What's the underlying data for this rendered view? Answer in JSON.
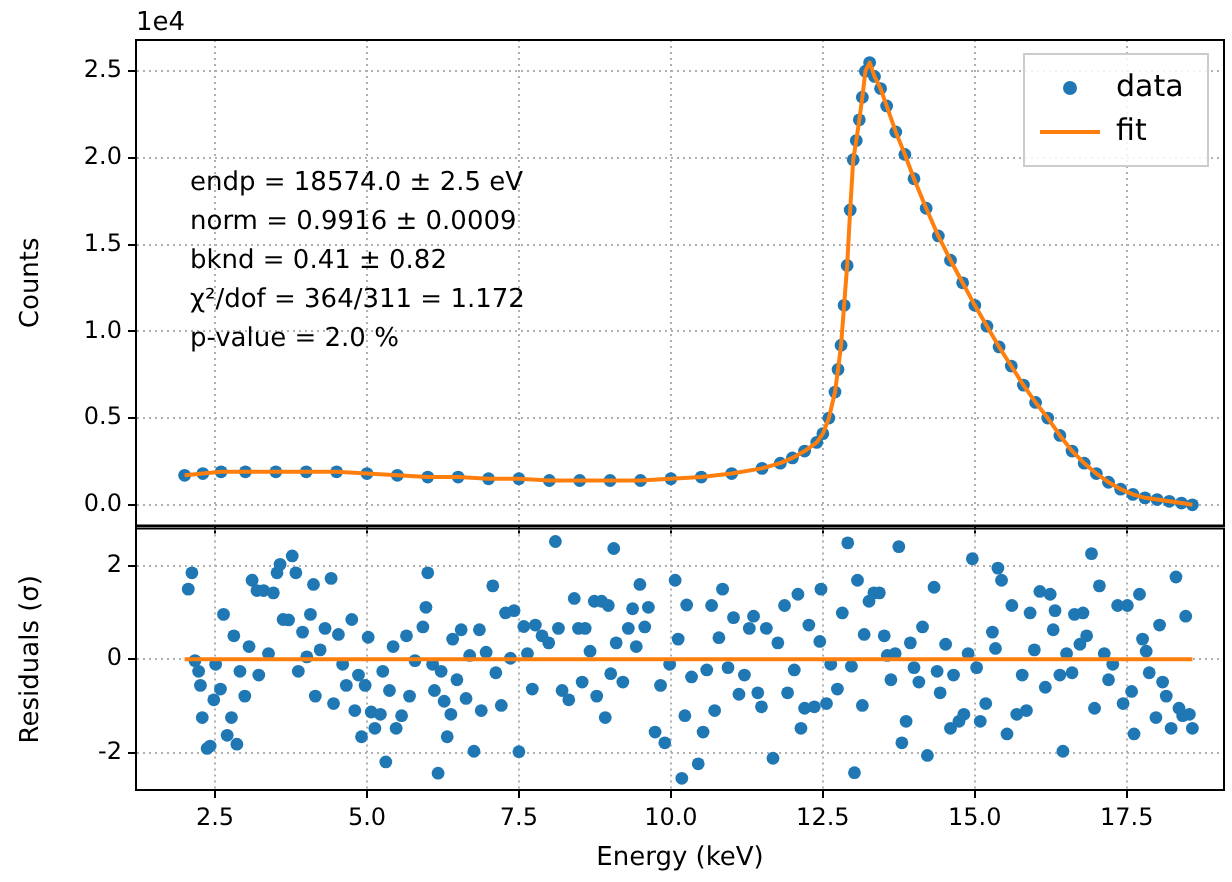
{
  "chart_data": [
    {
      "type": "scatter",
      "ylabel": "Counts",
      "annotations": [
        "1e4",
        "endp = 18574.0 ± 2.5 eV",
        "norm = 0.9916 ± 0.0009",
        "bknd = 0.41 ± 0.82",
        "χ²/dof = 364/311 = 1.172",
        "p-value = 2.0 %"
      ],
      "xlim": [
        1.2,
        19.1
      ],
      "xticks": [
        2.5,
        5,
        7.5,
        10,
        12.5,
        15,
        17.5
      ],
      "ylim": [
        -0.12,
        2.68
      ],
      "yticks": [
        {
          "value": 0,
          "label": "0.0"
        },
        {
          "value": 0.5,
          "label": "0.5"
        },
        {
          "value": 1,
          "label": "1.0"
        },
        {
          "value": 1.5,
          "label": "1.5"
        },
        {
          "value": 2,
          "label": "2.0"
        },
        {
          "value": 2.5,
          "label": "2.5"
        }
      ],
      "tick_labels": "y",
      "grid": true,
      "legend": "top right",
      "series": [
        {
          "name": "data",
          "marker": "circle",
          "color": "#1f77b4",
          "x": [
            2.0,
            2.3,
            2.6,
            3.0,
            3.5,
            4.0,
            4.5,
            5.0,
            5.5,
            6.0,
            6.5,
            7.0,
            7.5,
            8.0,
            8.5,
            9.0,
            9.5,
            10.0,
            10.5,
            11.0,
            11.5,
            11.8,
            12.0,
            12.2,
            12.4,
            12.5,
            12.6,
            12.7,
            12.75,
            12.8,
            12.85,
            12.9,
            12.95,
            13.0,
            13.05,
            13.1,
            13.15,
            13.2,
            13.27,
            13.35,
            13.45,
            13.55,
            13.7,
            13.85,
            14.0,
            14.2,
            14.4,
            14.6,
            14.8,
            15.0,
            15.2,
            15.4,
            15.6,
            15.8,
            16.0,
            16.2,
            16.4,
            16.6,
            16.8,
            17.0,
            17.2,
            17.4,
            17.6,
            17.8,
            18.0,
            18.2,
            18.4,
            18.58
          ],
          "values": [
            0.17,
            0.18,
            0.19,
            0.19,
            0.19,
            0.19,
            0.19,
            0.18,
            0.17,
            0.16,
            0.16,
            0.15,
            0.15,
            0.14,
            0.14,
            0.14,
            0.14,
            0.15,
            0.16,
            0.18,
            0.21,
            0.24,
            0.27,
            0.31,
            0.36,
            0.41,
            0.5,
            0.65,
            0.78,
            0.92,
            1.15,
            1.38,
            1.7,
            1.99,
            2.1,
            2.22,
            2.35,
            2.5,
            2.55,
            2.47,
            2.4,
            2.3,
            2.15,
            2.02,
            1.88,
            1.71,
            1.55,
            1.41,
            1.28,
            1.15,
            1.03,
            0.91,
            0.8,
            0.69,
            0.59,
            0.5,
            0.4,
            0.31,
            0.24,
            0.18,
            0.13,
            0.09,
            0.06,
            0.04,
            0.03,
            0.02,
            0.01,
            0.0
          ]
        },
        {
          "name": "fit",
          "type": "line",
          "marker": "none",
          "color": "#ff7f0e",
          "x": [
            2.0,
            2.3,
            2.6,
            3.0,
            3.5,
            4.0,
            4.5,
            5.0,
            5.5,
            6.0,
            6.5,
            7.0,
            7.5,
            8.0,
            8.5,
            9.0,
            9.5,
            10.0,
            10.5,
            11.0,
            11.5,
            11.8,
            12.0,
            12.2,
            12.4,
            12.5,
            12.6,
            12.7,
            12.75,
            12.8,
            12.85,
            12.9,
            12.95,
            13.0,
            13.05,
            13.1,
            13.15,
            13.2,
            13.27,
            13.35,
            13.45,
            13.55,
            13.7,
            13.85,
            14.0,
            14.2,
            14.4,
            14.6,
            14.8,
            15.0,
            15.2,
            15.4,
            15.6,
            15.8,
            16.0,
            16.2,
            16.4,
            16.6,
            16.8,
            17.0,
            17.2,
            17.4,
            17.6,
            17.8,
            18.0,
            18.2,
            18.4,
            18.58
          ],
          "values": [
            0.17,
            0.18,
            0.19,
            0.19,
            0.19,
            0.19,
            0.19,
            0.18,
            0.17,
            0.16,
            0.16,
            0.15,
            0.15,
            0.14,
            0.14,
            0.14,
            0.14,
            0.15,
            0.16,
            0.18,
            0.21,
            0.24,
            0.27,
            0.31,
            0.36,
            0.41,
            0.5,
            0.65,
            0.78,
            0.92,
            1.15,
            1.38,
            1.7,
            1.99,
            2.1,
            2.22,
            2.35,
            2.5,
            2.55,
            2.47,
            2.4,
            2.3,
            2.15,
            2.02,
            1.88,
            1.71,
            1.55,
            1.41,
            1.28,
            1.15,
            1.03,
            0.91,
            0.8,
            0.69,
            0.59,
            0.5,
            0.4,
            0.31,
            0.24,
            0.18,
            0.13,
            0.09,
            0.06,
            0.04,
            0.03,
            0.02,
            0.01,
            0.0
          ]
        }
      ]
    },
    {
      "type": "scatter",
      "xlabel": "Energy (keV)",
      "ylabel": "Residuals (σ)",
      "xlim": [
        1.2,
        19.1
      ],
      "xticks": [
        {
          "value": 2.5,
          "label": "2.5"
        },
        {
          "value": 5,
          "label": "5.0"
        },
        {
          "value": 7.5,
          "label": "7.5"
        },
        {
          "value": 10,
          "label": "10.0"
        },
        {
          "value": 12.5,
          "label": "12.5"
        },
        {
          "value": 15,
          "label": "15.0"
        },
        {
          "value": 17.5,
          "label": "17.5"
        }
      ],
      "ylim": [
        -2.8,
        2.8
      ],
      "yticks": [
        -2,
        0,
        2
      ],
      "grid": true,
      "series": [
        {
          "marker": "circle",
          "color": "#1f77b4",
          "x": [
            2.06,
            2.12,
            2.17,
            2.23,
            2.26,
            2.29,
            2.37,
            2.42,
            2.48,
            2.51,
            2.59,
            2.64,
            2.7,
            2.77,
            2.81,
            2.86,
            2.91,
            2.99,
            3.06,
            3.11,
            3.19,
            3.22,
            3.3,
            3.38,
            3.46,
            3.52,
            3.57,
            3.62,
            3.71,
            3.77,
            3.83,
            3.87,
            3.94,
            4.01,
            4.07,
            4.12,
            4.15,
            4.23,
            4.31,
            4.41,
            4.45,
            4.53,
            4.6,
            4.66,
            4.75,
            4.8,
            4.86,
            4.91,
            4.97,
            5.02,
            5.07,
            5.13,
            5.22,
            5.26,
            5.31,
            5.37,
            5.43,
            5.48,
            5.57,
            5.65,
            5.7,
            5.79,
            5.92,
            5.97,
            6.0,
            6.08,
            6.11,
            6.17,
            6.22,
            6.27,
            6.32,
            6.38,
            6.41,
            6.48,
            6.55,
            6.63,
            6.69,
            6.76,
            6.85,
            6.88,
            6.96,
            7.07,
            7.12,
            7.21,
            7.28,
            7.36,
            7.42,
            7.5,
            7.58,
            7.64,
            7.72,
            7.77,
            7.88,
            7.99,
            8.1,
            8.15,
            8.21,
            8.32,
            8.41,
            8.48,
            8.54,
            8.59,
            8.67,
            8.74,
            8.78,
            8.86,
            8.92,
            8.97,
            9.01,
            9.06,
            9.1,
            9.21,
            9.3,
            9.37,
            9.43,
            9.49,
            9.57,
            9.63,
            9.74,
            9.83,
            9.9,
            9.98,
            10.07,
            10.12,
            10.18,
            10.23,
            10.26,
            10.34,
            10.45,
            10.53,
            10.59,
            10.67,
            10.72,
            10.79,
            10.85,
            10.94,
            11.03,
            11.12,
            11.21,
            11.29,
            11.36,
            11.43,
            11.49,
            11.57,
            11.68,
            11.76,
            11.87,
            11.92,
            12.03,
            12.09,
            12.14,
            12.2,
            12.27,
            12.36,
            12.45,
            12.47,
            12.56,
            12.63,
            12.74,
            12.82,
            12.91,
            12.97,
            13.02,
            13.07,
            13.15,
            13.18,
            13.26,
            13.34,
            13.43,
            13.51,
            13.56,
            13.62,
            13.69,
            13.75,
            13.8,
            13.87,
            13.94,
            14.0,
            14.08,
            14.14,
            14.22,
            14.33,
            14.38,
            14.43,
            14.52,
            14.6,
            14.65,
            14.74,
            14.82,
            14.89,
            14.96,
            15.03,
            15.09,
            15.18,
            15.29,
            15.34,
            15.38,
            15.44,
            15.53,
            15.61,
            15.69,
            15.78,
            15.85,
            15.91,
            15.98,
            16.07,
            16.16,
            16.24,
            16.29,
            16.32,
            16.4,
            16.45,
            16.51,
            16.6,
            16.64,
            16.73,
            16.78,
            16.84,
            16.92,
            16.97,
            17.05,
            17.13,
            17.2,
            17.27,
            17.35,
            17.44,
            17.51,
            17.58,
            17.62,
            17.71,
            17.76,
            17.82,
            17.87,
            17.98,
            18.04,
            18.09,
            18.15,
            18.23,
            18.31,
            18.36,
            18.42,
            18.47,
            18.53,
            18.58
          ],
          "values": [
            1.5,
            1.85,
            -0.03,
            -0.26,
            -0.56,
            -1.25,
            -1.91,
            -1.86,
            -0.87,
            -0.11,
            -0.64,
            0.96,
            -1.63,
            -1.25,
            0.5,
            -1.82,
            -0.26,
            -0.79,
            0.27,
            1.69,
            1.47,
            -0.34,
            1.47,
            0.12,
            1.42,
            1.85,
            2.03,
            0.85,
            0.84,
            2.21,
            1.85,
            -0.26,
            0.58,
            0.05,
            0.96,
            1.6,
            -0.79,
            0.2,
            0.66,
            1.73,
            -0.95,
            0.53,
            -0.11,
            -0.56,
            0.85,
            -1.1,
            -0.34,
            -1.66,
            -0.56,
            0.47,
            -1.13,
            -1.48,
            -1.18,
            -0.26,
            -2.2,
            -0.67,
            0.27,
            -1.48,
            -1.21,
            0.5,
            -0.79,
            -0.03,
            0.69,
            1.11,
            1.85,
            -0.11,
            -0.67,
            -2.44,
            -0.26,
            -0.9,
            -1.66,
            -1.18,
            0.43,
            -0.44,
            0.63,
            -0.84,
            0.08,
            -1.97,
            0.63,
            -1.1,
            0.15,
            1.57,
            -0.29,
            -0.99,
            0.99,
            0.02,
            1.04,
            -1.98,
            0.7,
            0.12,
            -0.64,
            0.73,
            0.5,
            0.35,
            2.52,
            0.66,
            -0.67,
            -0.87,
            1.3,
            0.66,
            -0.49,
            0.66,
            0.17,
            1.24,
            -0.79,
            1.24,
            -1.25,
            1.15,
            -0.31,
            2.37,
            0.35,
            -0.49,
            0.66,
            1.08,
            0.27,
            1.6,
            0.69,
            1.11,
            -1.56,
            -0.56,
            -1.79,
            -0.11,
            1.69,
            0.43,
            -2.55,
            -1.21,
            1.16,
            -0.38,
            -2.24,
            -1.56,
            -0.23,
            1.15,
            -1.1,
            0.46,
            1.5,
            -0.18,
            0.89,
            -0.75,
            -0.34,
            0.66,
            0.92,
            -0.72,
            -1.02,
            0.66,
            -2.12,
            0.35,
            1.15,
            -0.72,
            -0.23,
            1.39,
            -1.48,
            -1.05,
            0.73,
            -1.02,
            0.38,
            1.5,
            -0.95,
            -0.11,
            -0.64,
            0.99,
            2.49,
            -0.15,
            -2.43,
            1.69,
            -0.99,
            0.53,
            1.24,
            1.42,
            1.42,
            0.5,
            0.08,
            -0.44,
            0.12,
            2.41,
            -1.79,
            -1.33,
            0.35,
            -0.18,
            -0.49,
            0.69,
            -2.06,
            1.54,
            -0.26,
            -0.72,
            0.32,
            -1.48,
            -0.34,
            -1.33,
            -1.18,
            0.12,
            2.15,
            -0.18,
            -1.33,
            -0.95,
            0.58,
            0.23,
            1.95,
            1.69,
            -1.6,
            1.15,
            -1.18,
            -0.34,
            -1.1,
            0.99,
            0.2,
            1.45,
            -0.6,
            1.39,
            0.63,
            1.04,
            -0.34,
            -1.97,
            0.12,
            -0.29,
            0.96,
            0.32,
            0.99,
            0.5,
            2.26,
            -1.05,
            1.57,
            0.12,
            -0.44,
            -0.11,
            1.15,
            -0.95,
            1.15,
            -0.69,
            -1.6,
            1.39,
            0.43,
            0.17,
            -0.29,
            -1.25,
            0.73,
            -0.49,
            -0.79,
            -1.48,
            1.76,
            -1.05,
            -1.21,
            0.92,
            -1.18,
            -1.48
          ]
        },
        {
          "type": "line",
          "marker": "none",
          "color": "#ff7f0e",
          "x": [
            2.0,
            18.58
          ],
          "values": [
            0,
            0
          ]
        }
      ]
    }
  ]
}
